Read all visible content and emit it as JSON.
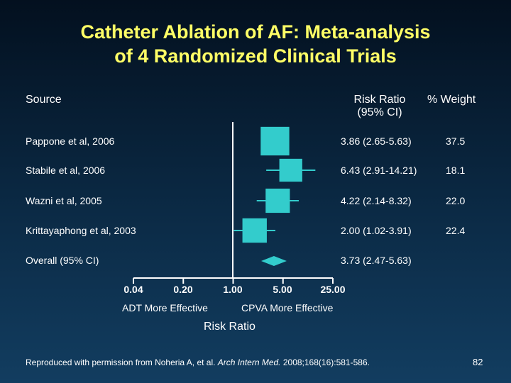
{
  "slide": {
    "title_line1": "Catheter Ablation of AF: Meta-analysis",
    "title_line2": "of 4 Randomized Clinical Trials",
    "page_number": "82"
  },
  "headers": {
    "source": "Source",
    "risk_ratio_line1": "Risk Ratio",
    "risk_ratio_line2": "(95% CI)",
    "weight": "% Weight"
  },
  "footer": {
    "prefix": "Reproduced with permission from Noheria A, et al. ",
    "journal": "Arch Intern Med.",
    "suffix": " 2008;168(16):581-586."
  },
  "colors": {
    "title": "#ffff66",
    "marker": "#33cccc",
    "axis": "#ffffff"
  },
  "chart_data": {
    "type": "forest",
    "xscale": "log",
    "xlim": [
      0.04,
      25.0
    ],
    "reference_line": 1.0,
    "ticks": [
      0.04,
      0.2,
      1.0,
      5.0,
      25.0
    ],
    "tick_labels": [
      "0.04",
      "0.20",
      "1.00",
      "5.00",
      "25.00"
    ],
    "xlabel": "Risk Ratio",
    "left_direction_label": "ADT More Effective",
    "right_direction_label": "CPVA More Effective",
    "studies": [
      {
        "name": "Pappone et al, 2006",
        "rr": 3.86,
        "lo": 2.65,
        "hi": 5.63,
        "ci_text": "3.86 (2.65-5.63)",
        "weight": "37.5"
      },
      {
        "name": "Stabile et al, 2006",
        "rr": 6.43,
        "lo": 2.91,
        "hi": 14.21,
        "ci_text": "6.43 (2.91-14.21)",
        "weight": "18.1"
      },
      {
        "name": "Wazni et al, 2005",
        "rr": 4.22,
        "lo": 2.14,
        "hi": 8.32,
        "ci_text": "4.22 (2.14-8.32)",
        "weight": "22.0"
      },
      {
        "name": "Krittayaphong et al, 2003",
        "rr": 2.0,
        "lo": 1.02,
        "hi": 3.91,
        "ci_text": "2.00 (1.02-3.91)",
        "weight": "22.4"
      }
    ],
    "overall": {
      "name": "Overall (95% CI)",
      "rr": 3.73,
      "lo": 2.47,
      "hi": 5.63,
      "ci_text": "3.73 (2.47-5.63)"
    }
  }
}
